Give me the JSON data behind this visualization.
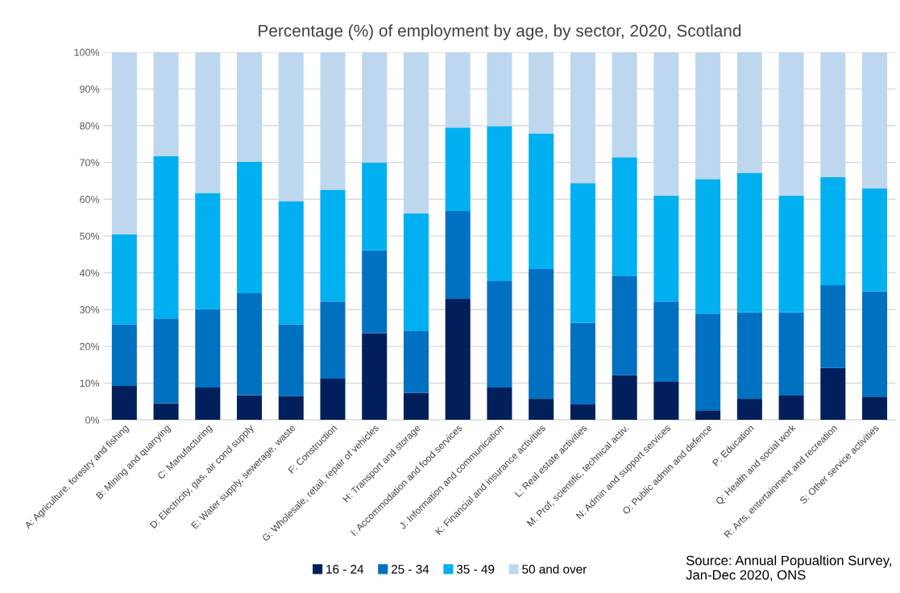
{
  "chart_data": {
    "type": "bar",
    "stacked": true,
    "title": "Percentage (%) of employment by age, by sector, 2020, Scotland",
    "categories": [
      "A: Agriculture, forestry and fishing",
      "B: Mining and quarrying",
      "C: Manufacturing",
      "D: Electricity, gas, air cond supply",
      "E: Water supply, sewerage, waste",
      "F: Construction",
      "G: Wholesale, retail, repair of vehicles",
      "H: Transport and storage",
      "I: Accommodation and food services",
      "J: Information and communication",
      "K: Financial and insurance activities",
      "L: Real estate activities",
      "M: Prof, scientific, technical activ.",
      "N: Admin and support services",
      "O: Public admin and defence",
      "P: Education",
      "Q: Health and social work",
      "R: Arts, entertainment and recreation",
      "S: Other service activities"
    ],
    "series": [
      {
        "name": "16 - 24",
        "color": "#001f5b",
        "values": [
          9.2,
          4.5,
          8.8,
          6.7,
          6.5,
          11.2,
          23.6,
          7.3,
          32.9,
          8.8,
          5.7,
          4.2,
          12.1,
          10.3,
          2.6,
          5.7,
          6.6,
          14.1,
          6.3
        ]
      },
      {
        "name": "25 - 34",
        "color": "#0070c0",
        "values": [
          16.8,
          23.1,
          21.3,
          27.7,
          19.5,
          21.0,
          22.5,
          16.8,
          23.9,
          28.9,
          35.3,
          22.2,
          27.1,
          21.9,
          26.3,
          23.5,
          22.6,
          22.5,
          28.6
        ]
      },
      {
        "name": "35 - 49",
        "color": "#00b0f0",
        "values": [
          24.5,
          44.1,
          31.6,
          35.8,
          33.4,
          30.4,
          23.9,
          32.1,
          22.7,
          42.2,
          36.9,
          38.0,
          32.2,
          28.8,
          36.6,
          38.0,
          31.8,
          29.4,
          28.0
        ]
      },
      {
        "name": "50 and over",
        "color": "#bdd7ee",
        "values": [
          49.5,
          28.3,
          38.3,
          29.8,
          40.6,
          37.4,
          30.0,
          43.8,
          20.5,
          20.1,
          22.1,
          35.6,
          28.6,
          39.0,
          34.5,
          32.8,
          39.0,
          34.0,
          37.1
        ]
      }
    ],
    "ylim": [
      0,
      100
    ],
    "yticks": [
      {
        "value": 0,
        "label": "0%"
      },
      {
        "value": 10,
        "label": "10%"
      },
      {
        "value": 20,
        "label": "20%"
      },
      {
        "value": 30,
        "label": "30%"
      },
      {
        "value": 40,
        "label": "40%"
      },
      {
        "value": 50,
        "label": "50%"
      },
      {
        "value": 60,
        "label": "60%"
      },
      {
        "value": 70,
        "label": "70%"
      },
      {
        "value": 80,
        "label": "80%"
      },
      {
        "value": 90,
        "label": "90%"
      },
      {
        "value": 100,
        "label": "100%"
      }
    ],
    "grid": "y",
    "legend": "bottom",
    "annotations": [
      "Source: Annual Popualtion Survey,\nJan-Dec 2020, ONS"
    ]
  }
}
